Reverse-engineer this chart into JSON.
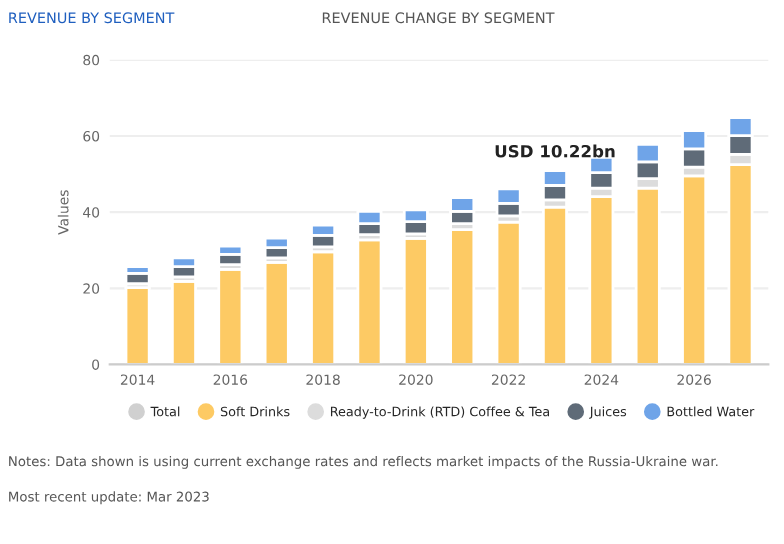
{
  "chart_data": {
    "type": "bar",
    "stacked": true,
    "ylabel": "Values",
    "x": [
      2014,
      2015,
      2016,
      2017,
      2018,
      2019,
      2020,
      2021,
      2022,
      2023,
      2024,
      2025,
      2026,
      2027
    ],
    "xlim": [
      2013.4,
      2027.6
    ],
    "xticks": [
      2014,
      2016,
      2018,
      2020,
      2022,
      2024,
      2026
    ],
    "ylim": [
      0,
      80
    ],
    "yticks": [
      0,
      20,
      40,
      60,
      80
    ],
    "series": [
      {
        "name": "Total",
        "color": "#d0d0d0",
        "values": [
          null,
          null,
          null,
          null,
          null,
          null,
          null,
          null,
          null,
          null,
          null,
          null,
          null,
          null
        ]
      },
      {
        "name": "Soft Drinks",
        "color": "#fdca64",
        "values": [
          20.2,
          21.8,
          25.0,
          26.8,
          29.6,
          32.7,
          33.1,
          35.4,
          37.4,
          41.3,
          44.1,
          46.3,
          49.5,
          52.5
        ]
      },
      {
        "name": "Ready-to-Drink (RTD) Coffee & Tea",
        "color": "#dcdcdc",
        "values": [
          1.0,
          1.2,
          1.2,
          1.2,
          1.3,
          1.4,
          1.2,
          1.6,
          1.6,
          1.9,
          2.2,
          2.5,
          2.3,
          2.7
        ]
      },
      {
        "name": "Juices",
        "color": "#5f6b78",
        "values": [
          2.7,
          2.7,
          2.7,
          2.7,
          3.0,
          2.9,
          3.2,
          3.2,
          3.3,
          3.8,
          4.1,
          4.4,
          4.8,
          4.9
        ]
      },
      {
        "name": "Bottled Water",
        "color": "#6fa4e8",
        "values": [
          1.8,
          2.3,
          2.2,
          2.5,
          2.7,
          3.2,
          3.1,
          3.6,
          3.8,
          3.9,
          4.0,
          4.6,
          4.8,
          4.7
        ]
      }
    ],
    "grid": "y",
    "legend": "bottom",
    "annotations": [
      "REVENUE BY SEGMENT",
      "REVENUE CHANGE BY SEGMENT",
      {
        "text": "USD 10.22bn",
        "x": 2023,
        "y": 53.5
      },
      "Notes: Data shown is using current exchange rates and reflects market impacts of the Russia-Ukraine war.",
      "Most recent update: Mar 2023"
    ]
  }
}
